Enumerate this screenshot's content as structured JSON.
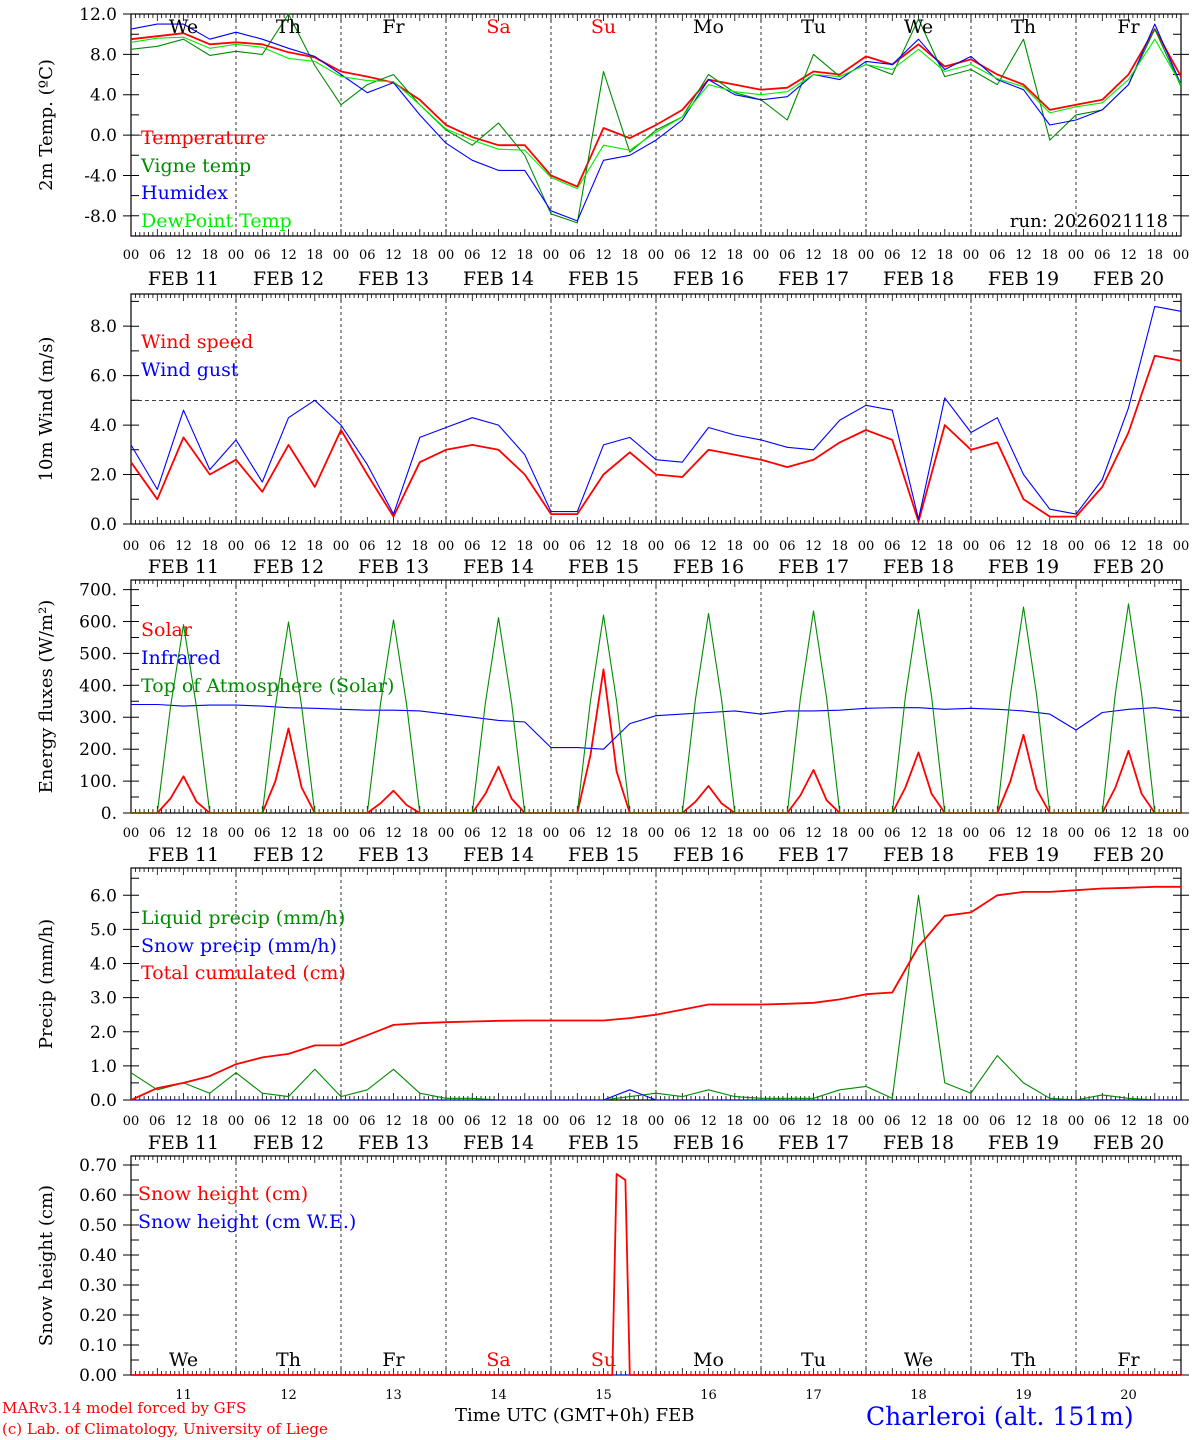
{
  "days": {
    "names": [
      "We",
      "Th",
      "Fr",
      "Sa",
      "Su",
      "Mo",
      "Tu",
      "We",
      "Th",
      "Fr"
    ],
    "weekend_color": "#ff0000",
    "weekend_index": [
      3,
      4
    ],
    "feb_labels": [
      "FEB 11",
      "FEB 12",
      "FEB 13",
      "FEB 14",
      "FEB 15",
      "FEB 16",
      "FEB 17",
      "FEB 18",
      "FEB 19",
      "FEB 20"
    ],
    "numbers": [
      "11",
      "12",
      "13",
      "14",
      "15",
      "16",
      "17",
      "18",
      "19",
      "20"
    ],
    "hour_labels": [
      "00",
      "06",
      "12",
      "18"
    ]
  },
  "footer": {
    "model": "MARv3.14 model forced by GFS",
    "copyright": "(c) Lab. of Climatology, University of Liege",
    "xlabel": "Time UTC (GMT+0h) FEB",
    "station": "Charleroi (alt. 151m)"
  },
  "chart_data": [
    {
      "type": "line",
      "ylabel": "2m Temp. (ºC)",
      "ylim": [
        -10,
        12
      ],
      "ref_line": 0,
      "run": "run: 2026021118",
      "yticks": [
        {
          "v": 12,
          "label": "12.0"
        },
        {
          "v": 8,
          "label": "8.0"
        },
        {
          "v": 4,
          "label": "4.0"
        },
        {
          "v": 0,
          "label": "0.0"
        },
        {
          "v": -4,
          "label": "-4.0"
        },
        {
          "v": -8,
          "label": "-8.0"
        }
      ],
      "minor_step": 2,
      "series": [
        {
          "name": "Temperature",
          "color": "#ff0000",
          "step_hours": 6,
          "values": [
            9.5,
            9.8,
            10.1,
            9.0,
            9.2,
            9.0,
            8.2,
            7.7,
            6.3,
            5.8,
            5.2,
            3.5,
            1.0,
            -0.2,
            -1.0,
            -1.0,
            -4.0,
            -5.1,
            0.7,
            -0.3,
            1.0,
            2.5,
            5.5,
            5.0,
            4.5,
            4.7,
            6.3,
            6.0,
            7.8,
            7.0,
            9.0,
            6.8,
            7.5,
            6.0,
            5.0,
            2.5,
            3.0,
            3.5,
            6.0,
            10.5,
            5.8
          ]
        },
        {
          "name": "Vigne temp",
          "color": "#008c00",
          "step_hours": 6,
          "values": [
            8.5,
            8.8,
            9.5,
            7.9,
            8.3,
            8.0,
            12.0,
            6.9,
            3.0,
            5.0,
            6.0,
            3.0,
            0.5,
            -1.0,
            1.2,
            -2.0,
            -7.8,
            -8.7,
            6.3,
            -1.7,
            0.5,
            1.8,
            6.0,
            4.2,
            3.5,
            1.5,
            8.0,
            5.8,
            7.0,
            6.0,
            11.5,
            5.8,
            6.5,
            5.0,
            9.5,
            -0.5,
            2.0,
            2.5,
            5.0,
            10.5,
            4.8
          ]
        },
        {
          "name": "Humidex",
          "color": "#0000ff",
          "step_hours": 6,
          "values": [
            10.5,
            11.0,
            11.0,
            9.5,
            10.2,
            9.5,
            8.6,
            7.8,
            6.0,
            4.2,
            5.2,
            2.0,
            -0.8,
            -2.5,
            -3.5,
            -3.5,
            -7.5,
            -8.5,
            -2.5,
            -2.0,
            -0.5,
            1.5,
            5.5,
            4.0,
            3.5,
            3.8,
            6.0,
            5.5,
            7.3,
            7.0,
            9.5,
            6.5,
            7.8,
            5.5,
            4.5,
            1.0,
            1.5,
            2.5,
            5.0,
            11.0,
            5.0
          ]
        },
        {
          "name": "DewPoint Temp",
          "color": "#00ee00",
          "step_hours": 6,
          "values": [
            9.2,
            9.6,
            9.7,
            8.6,
            9.0,
            8.7,
            7.6,
            7.3,
            5.8,
            5.4,
            5.3,
            3.0,
            0.6,
            -0.5,
            -1.4,
            -1.5,
            -4.2,
            -5.3,
            -1.0,
            -1.5,
            0.3,
            1.8,
            5.0,
            4.3,
            4.0,
            4.3,
            6.0,
            5.8,
            7.0,
            6.5,
            8.5,
            6.3,
            7.0,
            5.6,
            4.8,
            2.2,
            2.8,
            3.2,
            5.5,
            9.5,
            5.0
          ]
        }
      ]
    },
    {
      "type": "line",
      "ylabel": "10m Wind (m/s)",
      "ylim": [
        0,
        9.3
      ],
      "ref_line": 5,
      "yticks": [
        {
          "v": 8,
          "label": "8.0"
        },
        {
          "v": 6,
          "label": "6.0"
        },
        {
          "v": 4,
          "label": "4.0"
        },
        {
          "v": 2,
          "label": "2.0"
        },
        {
          "v": 0,
          "label": "0.0"
        }
      ],
      "minor_step": 1,
      "series": [
        {
          "name": "Wind speed",
          "color": "#ff0000",
          "step_hours": 6,
          "values": [
            2.5,
            1.0,
            3.5,
            2.0,
            2.6,
            1.3,
            3.2,
            1.5,
            3.8,
            2.0,
            0.3,
            2.5,
            3.0,
            3.2,
            3.0,
            2.0,
            0.4,
            0.4,
            2.0,
            2.9,
            2.0,
            1.9,
            3.0,
            2.8,
            2.6,
            2.3,
            2.6,
            3.3,
            3.8,
            3.4,
            0.1,
            4.0,
            3.0,
            3.3,
            1.0,
            0.3,
            0.3,
            1.5,
            3.7,
            6.8,
            6.6
          ]
        },
        {
          "name": "Wind gust",
          "color": "#0000ff",
          "step_hours": 6,
          "values": [
            3.2,
            1.4,
            4.6,
            2.2,
            3.4,
            1.7,
            4.3,
            5.0,
            4.0,
            2.4,
            0.4,
            3.5,
            3.9,
            4.3,
            4.0,
            2.8,
            0.5,
            0.5,
            3.2,
            3.5,
            2.6,
            2.5,
            3.9,
            3.6,
            3.4,
            3.1,
            3.0,
            4.2,
            4.8,
            4.6,
            0.2,
            5.1,
            3.7,
            4.3,
            2.0,
            0.6,
            0.4,
            1.8,
            4.7,
            8.8,
            8.6
          ]
        }
      ]
    },
    {
      "type": "line",
      "ylabel": "Energy fluxes (W/m²)",
      "ylim": [
        0,
        730
      ],
      "yticks": [
        {
          "v": 700,
          "label": "700."
        },
        {
          "v": 600,
          "label": "600."
        },
        {
          "v": 500,
          "label": "500."
        },
        {
          "v": 400,
          "label": "400."
        },
        {
          "v": 300,
          "label": "300."
        },
        {
          "v": 200,
          "label": "200."
        },
        {
          "v": 100,
          "label": "100."
        },
        {
          "v": 0,
          "label": "0."
        }
      ],
      "minor_step": 50,
      "series": [
        {
          "name": "Solar",
          "color": "#ff0000",
          "step_hours": 3,
          "values": [
            0,
            0,
            0,
            45,
            115,
            35,
            0,
            0,
            0,
            0,
            0,
            100,
            265,
            80,
            0,
            0,
            0,
            0,
            0,
            30,
            70,
            25,
            0,
            0,
            0,
            0,
            0,
            60,
            145,
            45,
            0,
            0,
            0,
            0,
            0,
            180,
            450,
            130,
            0,
            0,
            0,
            0,
            0,
            35,
            85,
            30,
            0,
            0,
            0,
            0,
            0,
            55,
            135,
            40,
            0,
            0,
            0,
            0,
            0,
            80,
            190,
            60,
            0,
            0,
            0,
            0,
            0,
            100,
            245,
            75,
            0,
            0,
            0,
            0,
            0,
            80,
            195,
            60,
            0,
            0,
            0
          ]
        },
        {
          "name": "Infrared",
          "color": "#0000ff",
          "step_hours": 6,
          "values": [
            340,
            340,
            335,
            338,
            338,
            335,
            330,
            328,
            325,
            322,
            322,
            320,
            310,
            300,
            290,
            285,
            205,
            205,
            200,
            280,
            305,
            310,
            315,
            320,
            310,
            320,
            320,
            322,
            328,
            330,
            330,
            325,
            328,
            325,
            320,
            310,
            260,
            315,
            325,
            330,
            320
          ]
        },
        {
          "name": "Top of Atmosphere (Solar)",
          "color": "#008c00",
          "step_hours": 3,
          "values": [
            0,
            0,
            0,
            330,
            590,
            330,
            0,
            0,
            0,
            0,
            0,
            335,
            598,
            335,
            0,
            0,
            0,
            0,
            0,
            340,
            605,
            340,
            0,
            0,
            0,
            0,
            0,
            345,
            612,
            345,
            0,
            0,
            0,
            0,
            0,
            350,
            620,
            350,
            0,
            0,
            0,
            0,
            0,
            355,
            625,
            355,
            0,
            0,
            0,
            0,
            0,
            360,
            633,
            360,
            0,
            0,
            0,
            0,
            0,
            365,
            638,
            365,
            0,
            0,
            0,
            0,
            0,
            370,
            645,
            370,
            0,
            0,
            0,
            0,
            0,
            375,
            655,
            375,
            0,
            0,
            0
          ]
        }
      ]
    },
    {
      "type": "line",
      "ylabel": "Precip (mm/h)",
      "ylim": [
        0,
        6.8
      ],
      "yticks": [
        {
          "v": 6,
          "label": "6.0"
        },
        {
          "v": 5,
          "label": "5.0"
        },
        {
          "v": 4,
          "label": "4.0"
        },
        {
          "v": 3,
          "label": "3.0"
        },
        {
          "v": 2,
          "label": "2.0"
        },
        {
          "v": 1,
          "label": "1.0"
        },
        {
          "v": 0,
          "label": "0.0"
        }
      ],
      "minor_step": 0.5,
      "series": [
        {
          "name": "Liquid precip (mm/h)",
          "color": "#008c00",
          "step_hours": 6,
          "values": [
            0.8,
            0.3,
            0.5,
            0.2,
            0.8,
            0.2,
            0.1,
            0.9,
            0.1,
            0.3,
            0.9,
            0.2,
            0.05,
            0.05,
            0,
            0,
            0,
            0,
            0,
            0.1,
            0.2,
            0.1,
            0.3,
            0.1,
            0.05,
            0.05,
            0.05,
            0.3,
            0.4,
            0.05,
            6.0,
            0.5,
            0.2,
            1.3,
            0.5,
            0.05,
            0,
            0.15,
            0.05,
            0,
            0
          ]
        },
        {
          "name": "Snow precip (mm/h)",
          "color": "#0000ff",
          "step_hours": 6,
          "values": [
            0,
            0,
            0,
            0,
            0,
            0,
            0,
            0,
            0,
            0,
            0,
            0,
            0,
            0,
            0,
            0,
            0,
            0,
            0,
            0.3,
            0,
            0,
            0,
            0,
            0,
            0,
            0,
            0,
            0,
            0,
            0,
            0,
            0,
            0,
            0,
            0,
            0,
            0,
            0,
            0,
            0
          ]
        },
        {
          "name": "Total cumulated (cm)",
          "color": "#ff0000",
          "step_hours": 6,
          "values": [
            0,
            0.35,
            0.5,
            0.7,
            1.05,
            1.25,
            1.35,
            1.6,
            1.6,
            1.9,
            2.2,
            2.25,
            2.28,
            2.3,
            2.32,
            2.33,
            2.33,
            2.33,
            2.33,
            2.4,
            2.5,
            2.65,
            2.8,
            2.8,
            2.8,
            2.82,
            2.85,
            2.95,
            3.1,
            3.15,
            4.5,
            5.4,
            5.5,
            6.0,
            6.1,
            6.1,
            6.15,
            6.2,
            6.22,
            6.25,
            6.25
          ]
        }
      ]
    },
    {
      "type": "line",
      "ylabel": "Snow height (cm)",
      "ylim": [
        0,
        0.73
      ],
      "yticks": [
        {
          "v": 0.7,
          "label": "0.70"
        },
        {
          "v": 0.6,
          "label": "0.60"
        },
        {
          "v": 0.5,
          "label": "0.50"
        },
        {
          "v": 0.4,
          "label": "0.40"
        },
        {
          "v": 0.3,
          "label": "0.30"
        },
        {
          "v": 0.2,
          "label": "0.20"
        },
        {
          "v": 0.1,
          "label": "0.10"
        },
        {
          "v": 0,
          "label": "0.00"
        }
      ],
      "minor_step": 0.05,
      "series": [
        {
          "name": "Snow height (cm W.E.)",
          "color": "#0000ff",
          "points": [
            [
              0,
              0
            ],
            [
              240,
              0
            ]
          ]
        },
        {
          "name": "Snow height (cm)",
          "color": "#ff0000",
          "points": [
            [
              0,
              0
            ],
            [
              110,
              0
            ],
            [
              111,
              0.67
            ],
            [
              113,
              0.65
            ],
            [
              114,
              0
            ],
            [
              240,
              0
            ]
          ]
        }
      ]
    }
  ]
}
